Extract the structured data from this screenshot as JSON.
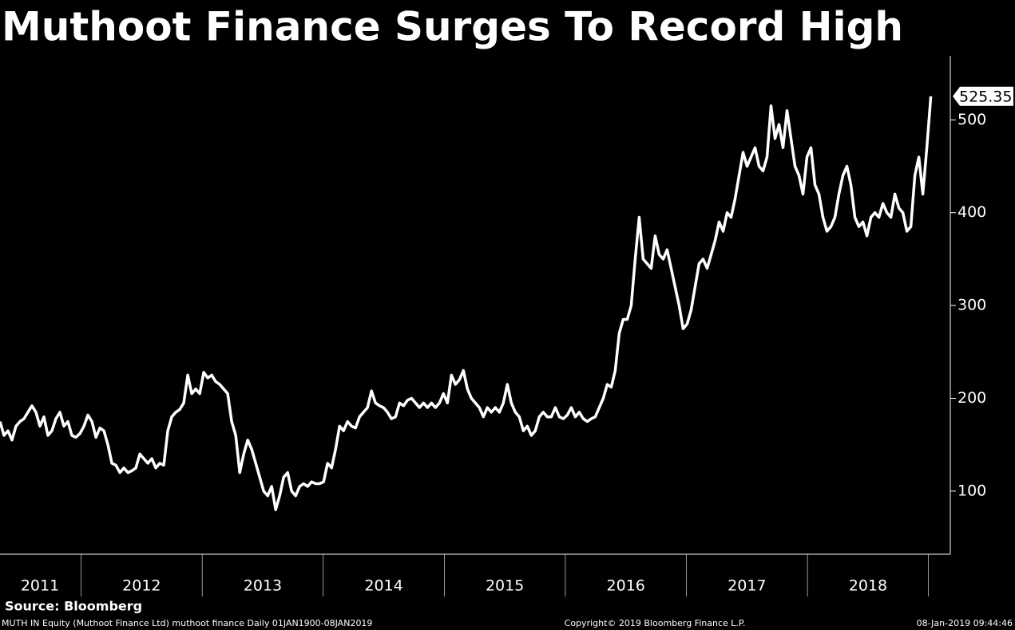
{
  "chart_data": {
    "type": "line",
    "title": "Muthoot Finance Surges To Record High",
    "source": "Source: Bloomberg",
    "footer_left": "MUTH IN Equity (Muthoot Finance Ltd) muthoot finance  Daily 01JAN1900-08JAN2019",
    "footer_center": "Copyright© 2019 Bloomberg Finance L.P.",
    "footer_right": "08-Jan-2019 09:44:46",
    "last_price": 525.35,
    "xlim": [
      2011.33,
      2019.18
    ],
    "ylim": [
      32,
      569
    ],
    "yticks": [
      100,
      200,
      300,
      400,
      500
    ],
    "xticks": [
      {
        "value": 2011.66,
        "label": "2011"
      },
      {
        "value": 2012.5,
        "label": "2012"
      },
      {
        "value": 2013.5,
        "label": "2013"
      },
      {
        "value": 2014.5,
        "label": "2014"
      },
      {
        "value": 2015.5,
        "label": "2015"
      },
      {
        "value": 2016.5,
        "label": "2016"
      },
      {
        "value": 2017.5,
        "label": "2017"
      },
      {
        "value": 2018.5,
        "label": "2018"
      }
    ],
    "x": [
      2011.33,
      2011.363,
      2011.396,
      2011.429,
      2011.462,
      2011.495,
      2011.528,
      2011.561,
      2011.594,
      2011.627,
      2011.66,
      2011.693,
      2011.726,
      2011.759,
      2011.792,
      2011.825,
      2011.858,
      2011.891,
      2011.924,
      2011.957,
      2011.99,
      2012.023,
      2012.056,
      2012.089,
      2012.122,
      2012.155,
      2012.188,
      2012.221,
      2012.254,
      2012.287,
      2012.32,
      2012.353,
      2012.386,
      2012.419,
      2012.452,
      2012.485,
      2012.518,
      2012.551,
      2012.584,
      2012.617,
      2012.65,
      2012.683,
      2012.716,
      2012.749,
      2012.782,
      2012.815,
      2012.848,
      2012.881,
      2012.914,
      2012.947,
      2012.98,
      2013.013,
      2013.046,
      2013.079,
      2013.112,
      2013.145,
      2013.178,
      2013.211,
      2013.244,
      2013.277,
      2013.31,
      2013.343,
      2013.376,
      2013.409,
      2013.442,
      2013.475,
      2013.508,
      2013.541,
      2013.574,
      2013.607,
      2013.64,
      2013.673,
      2013.706,
      2013.739,
      2013.772,
      2013.805,
      2013.838,
      2013.871,
      2013.904,
      2013.937,
      2013.97,
      2014.003,
      2014.036,
      2014.069,
      2014.102,
      2014.135,
      2014.168,
      2014.201,
      2014.234,
      2014.267,
      2014.3,
      2014.333,
      2014.366,
      2014.399,
      2014.432,
      2014.465,
      2014.498,
      2014.531,
      2014.564,
      2014.597,
      2014.63,
      2014.663,
      2014.696,
      2014.729,
      2014.762,
      2014.795,
      2014.828,
      2014.861,
      2014.894,
      2014.927,
      2014.96,
      2014.993,
      2015.026,
      2015.059,
      2015.092,
      2015.125,
      2015.158,
      2015.191,
      2015.224,
      2015.257,
      2015.29,
      2015.323,
      2015.356,
      2015.389,
      2015.422,
      2015.455,
      2015.488,
      2015.521,
      2015.554,
      2015.587,
      2015.62,
      2015.653,
      2015.686,
      2015.719,
      2015.752,
      2015.785,
      2015.818,
      2015.851,
      2015.884,
      2015.917,
      2015.95,
      2015.983,
      2016.016,
      2016.049,
      2016.082,
      2016.115,
      2016.148,
      2016.181,
      2016.214,
      2016.247,
      2016.28,
      2016.313,
      2016.346,
      2016.379,
      2016.412,
      2016.445,
      2016.478,
      2016.511,
      2016.544,
      2016.577,
      2016.61,
      2016.643,
      2016.676,
      2016.709,
      2016.742,
      2016.775,
      2016.808,
      2016.841,
      2016.874,
      2016.907,
      2016.94,
      2016.973,
      2017.006,
      2017.039,
      2017.072,
      2017.105,
      2017.138,
      2017.171,
      2017.204,
      2017.237,
      2017.27,
      2017.303,
      2017.336,
      2017.369,
      2017.402,
      2017.435,
      2017.468,
      2017.501,
      2017.534,
      2017.567,
      2017.6,
      2017.633,
      2017.666,
      2017.699,
      2017.732,
      2017.765,
      2017.798,
      2017.831,
      2017.864,
      2017.897,
      2017.93,
      2017.963,
      2017.996,
      2018.029,
      2018.062,
      2018.095,
      2018.128,
      2018.161,
      2018.194,
      2018.227,
      2018.26,
      2018.293,
      2018.326,
      2018.359,
      2018.392,
      2018.425,
      2018.458,
      2018.491,
      2018.524,
      2018.557,
      2018.59,
      2018.623,
      2018.656,
      2018.689,
      2018.722,
      2018.755,
      2018.788,
      2018.821,
      2018.854,
      2018.887,
      2018.92,
      2018.953,
      2018.986,
      2019.019
    ],
    "series": [
      {
        "color": "#ffffff",
        "values": [
          175,
          160,
          165,
          155,
          170,
          175,
          178,
          185,
          192,
          185,
          170,
          180,
          160,
          165,
          178,
          185,
          170,
          175,
          160,
          158,
          162,
          170,
          182,
          175,
          158,
          168,
          165,
          150,
          130,
          128,
          120,
          125,
          120,
          122,
          125,
          140,
          135,
          130,
          135,
          125,
          130,
          128,
          165,
          180,
          185,
          188,
          195,
          225,
          205,
          210,
          205,
          228,
          222,
          225,
          218,
          215,
          210,
          205,
          175,
          160,
          120,
          140,
          155,
          145,
          130,
          115,
          100,
          95,
          105,
          80,
          95,
          115,
          120,
          100,
          95,
          105,
          108,
          105,
          110,
          108,
          108,
          110,
          130,
          125,
          145,
          170,
          165,
          175,
          170,
          168,
          180,
          185,
          190,
          208,
          195,
          192,
          190,
          185,
          178,
          180,
          195,
          192,
          198,
          200,
          195,
          190,
          195,
          190,
          195,
          190,
          195,
          205,
          195,
          225,
          215,
          220,
          230,
          210,
          200,
          195,
          190,
          180,
          190,
          185,
          190,
          185,
          195,
          215,
          195,
          185,
          180,
          165,
          170,
          160,
          165,
          180,
          185,
          180,
          180,
          190,
          180,
          178,
          182,
          190,
          180,
          185,
          178,
          175,
          178,
          180,
          190,
          200,
          215,
          212,
          230,
          270,
          285,
          285,
          300,
          350,
          395,
          350,
          345,
          340,
          375,
          355,
          350,
          360,
          340,
          320,
          300,
          275,
          280,
          295,
          320,
          345,
          350,
          340,
          355,
          370,
          390,
          380,
          400,
          395,
          415,
          440,
          465,
          450,
          460,
          470,
          450,
          445,
          460,
          515,
          480,
          495,
          470,
          510,
          480,
          450,
          440,
          420,
          460,
          470,
          430,
          420,
          395,
          380,
          385,
          395,
          420,
          440,
          450,
          430,
          395,
          385,
          390,
          375,
          395,
          400,
          395,
          410,
          400,
          395,
          420,
          405,
          400,
          380,
          385,
          440,
          460,
          420,
          470,
          525.35
        ]
      }
    ]
  }
}
